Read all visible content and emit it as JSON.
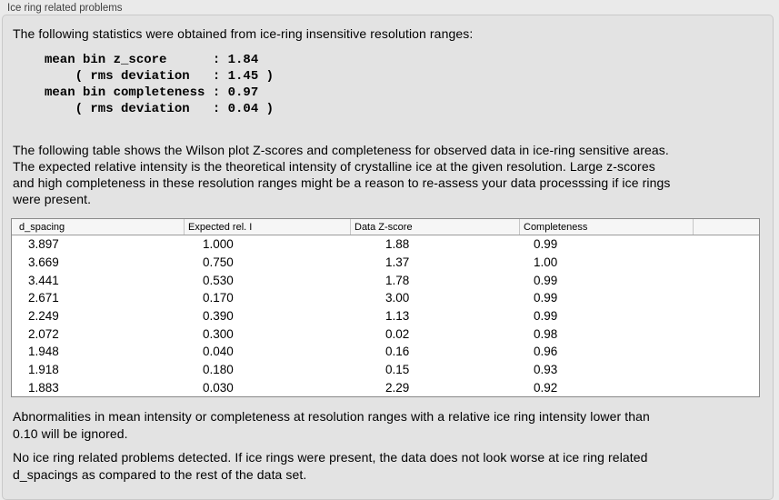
{
  "colors": {
    "page-bg": "#eaeaea",
    "box-bg": "#e3e3e3",
    "box-border": "#c9c9c9",
    "table-border": "#8a8a8a",
    "table-header-bg": "#f6f6f6",
    "text": "#000000",
    "title-text": "#3f3f3f"
  },
  "panel": {
    "title": "Ice ring related problems",
    "intro": "The following statistics were obtained from ice-ring insensitive resolution ranges:",
    "stats_lines": [
      "mean bin z_score      : 1.84",
      "    ( rms deviation   : 1.45 )",
      "mean bin completeness : 0.97",
      "    ( rms deviation   : 0.04 )"
    ],
    "description_lines": [
      "The following table shows the Wilson plot Z-scores and completeness for observed data in ice-ring sensitive areas.",
      "The expected relative intensity is the theoretical intensity of crystalline ice at the given resolution. Large z-scores",
      "and high completeness in these resolution ranges might be a reason to re-assess your data processsing if ice rings",
      "were present."
    ],
    "note_lines": [
      "Abnormalities in mean intensity or completeness at resolution ranges with a relative ice ring intensity lower than",
      "0.10 will be ignored."
    ],
    "conclusion_lines": [
      "No ice ring related problems detected. If ice rings were present, the data does not look worse at ice ring related",
      "d_spacings as compared to the rest of the data set."
    ]
  },
  "table": {
    "columns": [
      "d_spacing",
      "Expected rel. I",
      "Data Z-score",
      "Completeness",
      ""
    ],
    "rows": [
      [
        "3.897",
        "1.000",
        "1.88",
        "0.99",
        ""
      ],
      [
        "3.669",
        "0.750",
        "1.37",
        "1.00",
        ""
      ],
      [
        "3.441",
        "0.530",
        "1.78",
        "0.99",
        ""
      ],
      [
        "2.671",
        "0.170",
        "3.00",
        "0.99",
        ""
      ],
      [
        "2.249",
        "0.390",
        "1.13",
        "0.99",
        ""
      ],
      [
        "2.072",
        "0.300",
        "0.02",
        "0.98",
        ""
      ],
      [
        "1.948",
        "0.040",
        "0.16",
        "0.96",
        ""
      ],
      [
        "1.918",
        "0.180",
        "0.15",
        "0.93",
        ""
      ],
      [
        "1.883",
        "0.030",
        "2.29",
        "0.92",
        ""
      ]
    ]
  }
}
